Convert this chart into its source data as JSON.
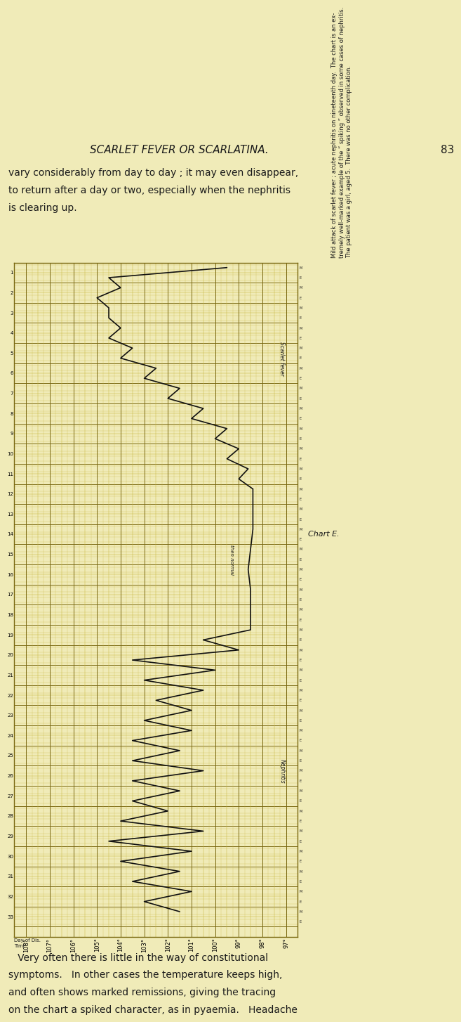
{
  "bg_color": "#f0ebb8",
  "page_bg": "#f0ebb8",
  "text_color": "#1a1a1a",
  "grid_minor": "#c8b840",
  "grid_major": "#7a6810",
  "line_color": "#111111",
  "temp_min": 97,
  "temp_max": 108,
  "n_days": 33,
  "header": "SCARLET FEVER OR SCARLATINA.",
  "page_num": "83",
  "top_para": [
    "vary considerably from day to day ; it may even disappear,",
    "to return after a day or two, especially when the nephritis",
    "is clearing up."
  ],
  "bottom_para": [
    "   Very often there is little in the way of constitutional",
    "symptoms.   In other cases the temperature keeps high,",
    "and often shows marked remissions, giving the tracing",
    "on the chart a spiked character, as in pyaemia.   Headache"
  ],
  "chart_e_label": "Chart E.",
  "side_caption": [
    "Mild attack of scarlet fever ; acute nephritis on nineteenth day.  The chart is an ex-",
    "tremely well-marked example of the “ spiking ” observed in some cases of nephritis.",
    "The patient was a girl, aged 5.  There was no other complication."
  ],
  "scarlet_label": "Scarlet fever",
  "nephritis_label": "Nephritis",
  "then_normal_label": "then normal",
  "sf_days": [
    1,
    1,
    2,
    2,
    3,
    3,
    4,
    4,
    5,
    5,
    6,
    6,
    7,
    7,
    8,
    8,
    9,
    9,
    10,
    10,
    11,
    11,
    12
  ],
  "sf_half": [
    "M",
    "E",
    "M",
    "E",
    "M",
    "E",
    "M",
    "E",
    "M",
    "E",
    "M",
    "E",
    "M",
    "E",
    "M",
    "E",
    "M",
    "E",
    "M",
    "E",
    "M",
    "E",
    "M"
  ],
  "sf_temps": [
    99.5,
    104.5,
    104.0,
    105.0,
    104.5,
    104.5,
    104.0,
    104.5,
    103.5,
    104.0,
    102.5,
    103.0,
    101.5,
    102.0,
    100.5,
    101.0,
    99.5,
    100.0,
    99.0,
    99.5,
    98.6,
    99.0,
    98.4
  ],
  "neph_days": [
    19,
    20,
    20,
    21,
    21,
    22,
    22,
    23,
    23,
    24,
    24,
    25,
    25,
    26,
    26,
    27,
    27,
    28,
    28,
    29,
    29,
    30,
    30,
    31,
    31,
    32,
    32,
    33
  ],
  "neph_half": [
    "E",
    "M",
    "E",
    "M",
    "E",
    "M",
    "E",
    "M",
    "E",
    "M",
    "E",
    "M",
    "E",
    "M",
    "E",
    "M",
    "E",
    "M",
    "E",
    "M",
    "E",
    "M",
    "E",
    "M",
    "E",
    "M",
    "E",
    "M"
  ],
  "neph_temps": [
    100.5,
    99.0,
    103.5,
    100.0,
    103.0,
    100.5,
    102.5,
    101.0,
    103.0,
    101.0,
    103.5,
    101.5,
    103.5,
    100.5,
    103.5,
    101.5,
    103.5,
    102.0,
    104.0,
    100.5,
    104.5,
    101.0,
    104.0,
    101.5,
    103.5,
    101.0,
    103.0,
    101.5
  ]
}
